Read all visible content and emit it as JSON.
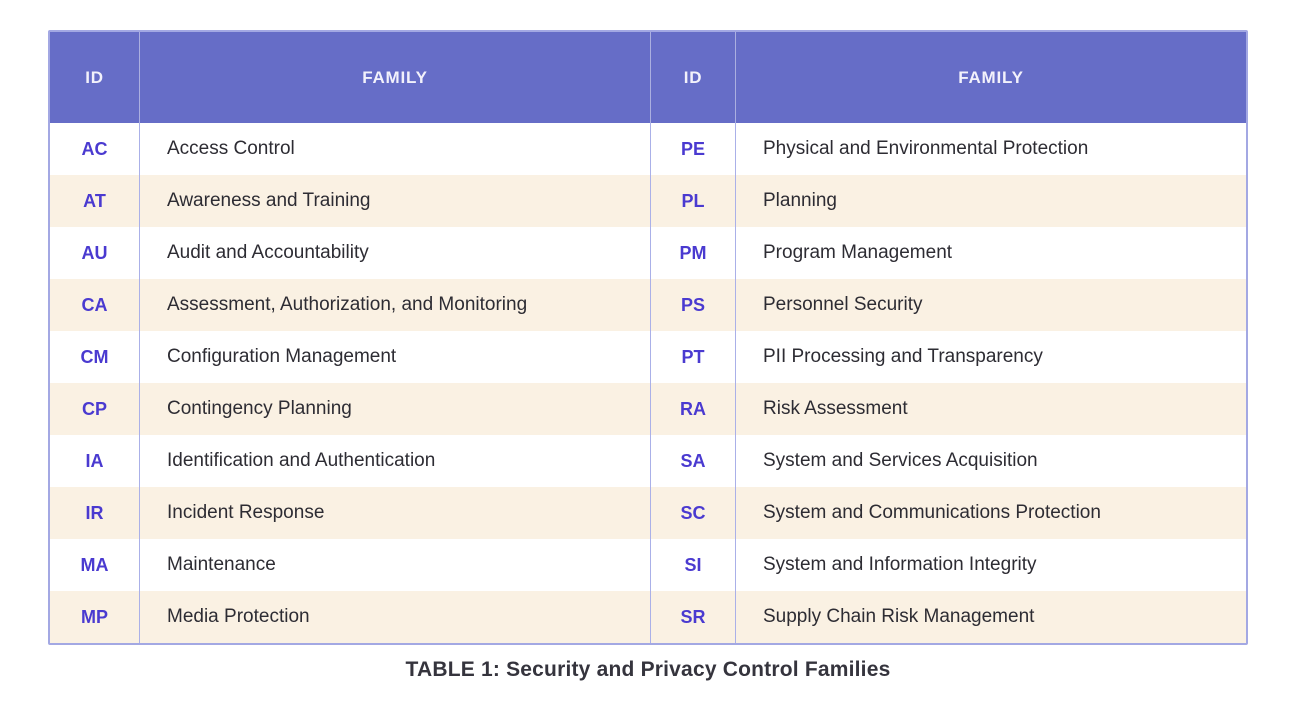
{
  "table": {
    "headers": {
      "id_left": "ID",
      "family_left": "FAMILY",
      "id_right": "ID",
      "family_right": "FAMILY"
    },
    "left_rows": [
      {
        "id": "AC",
        "family": "Access Control"
      },
      {
        "id": "AT",
        "family": "Awareness and Training"
      },
      {
        "id": "AU",
        "family": "Audit and Accountability"
      },
      {
        "id": "CA",
        "family": "Assessment, Authorization, and Monitoring"
      },
      {
        "id": "CM",
        "family": "Configuration Management"
      },
      {
        "id": "CP",
        "family": "Contingency Planning"
      },
      {
        "id": "IA",
        "family": "Identification and Authentication"
      },
      {
        "id": "IR",
        "family": "Incident Response"
      },
      {
        "id": "MA",
        "family": "Maintenance"
      },
      {
        "id": "MP",
        "family": "Media Protection"
      }
    ],
    "right_rows": [
      {
        "id": "PE",
        "family": "Physical and Environmental Protection"
      },
      {
        "id": "PL",
        "family": "Planning"
      },
      {
        "id": "PM",
        "family": "Program Management"
      },
      {
        "id": "PS",
        "family": "Personnel Security"
      },
      {
        "id": "PT",
        "family": "PII Processing and Transparency"
      },
      {
        "id": "RA",
        "family": "Risk Assessment"
      },
      {
        "id": "SA",
        "family": "System and Services Acquisition"
      },
      {
        "id": "SC",
        "family": "System and Communications Protection"
      },
      {
        "id": "SI",
        "family": "System and Information Integrity"
      },
      {
        "id": "SR",
        "family": "Supply Chain Risk Management"
      }
    ]
  },
  "caption": "TABLE 1: Security and Privacy Control Families",
  "colors": {
    "header_bg": "#666dc7",
    "header_text": "#f2f1fb",
    "id_text": "#4a3ad0",
    "body_text": "#2d2c33",
    "row_alt_bg": "#faf1e3",
    "row_bg": "#ffffff",
    "border": "#a3a8e3"
  }
}
